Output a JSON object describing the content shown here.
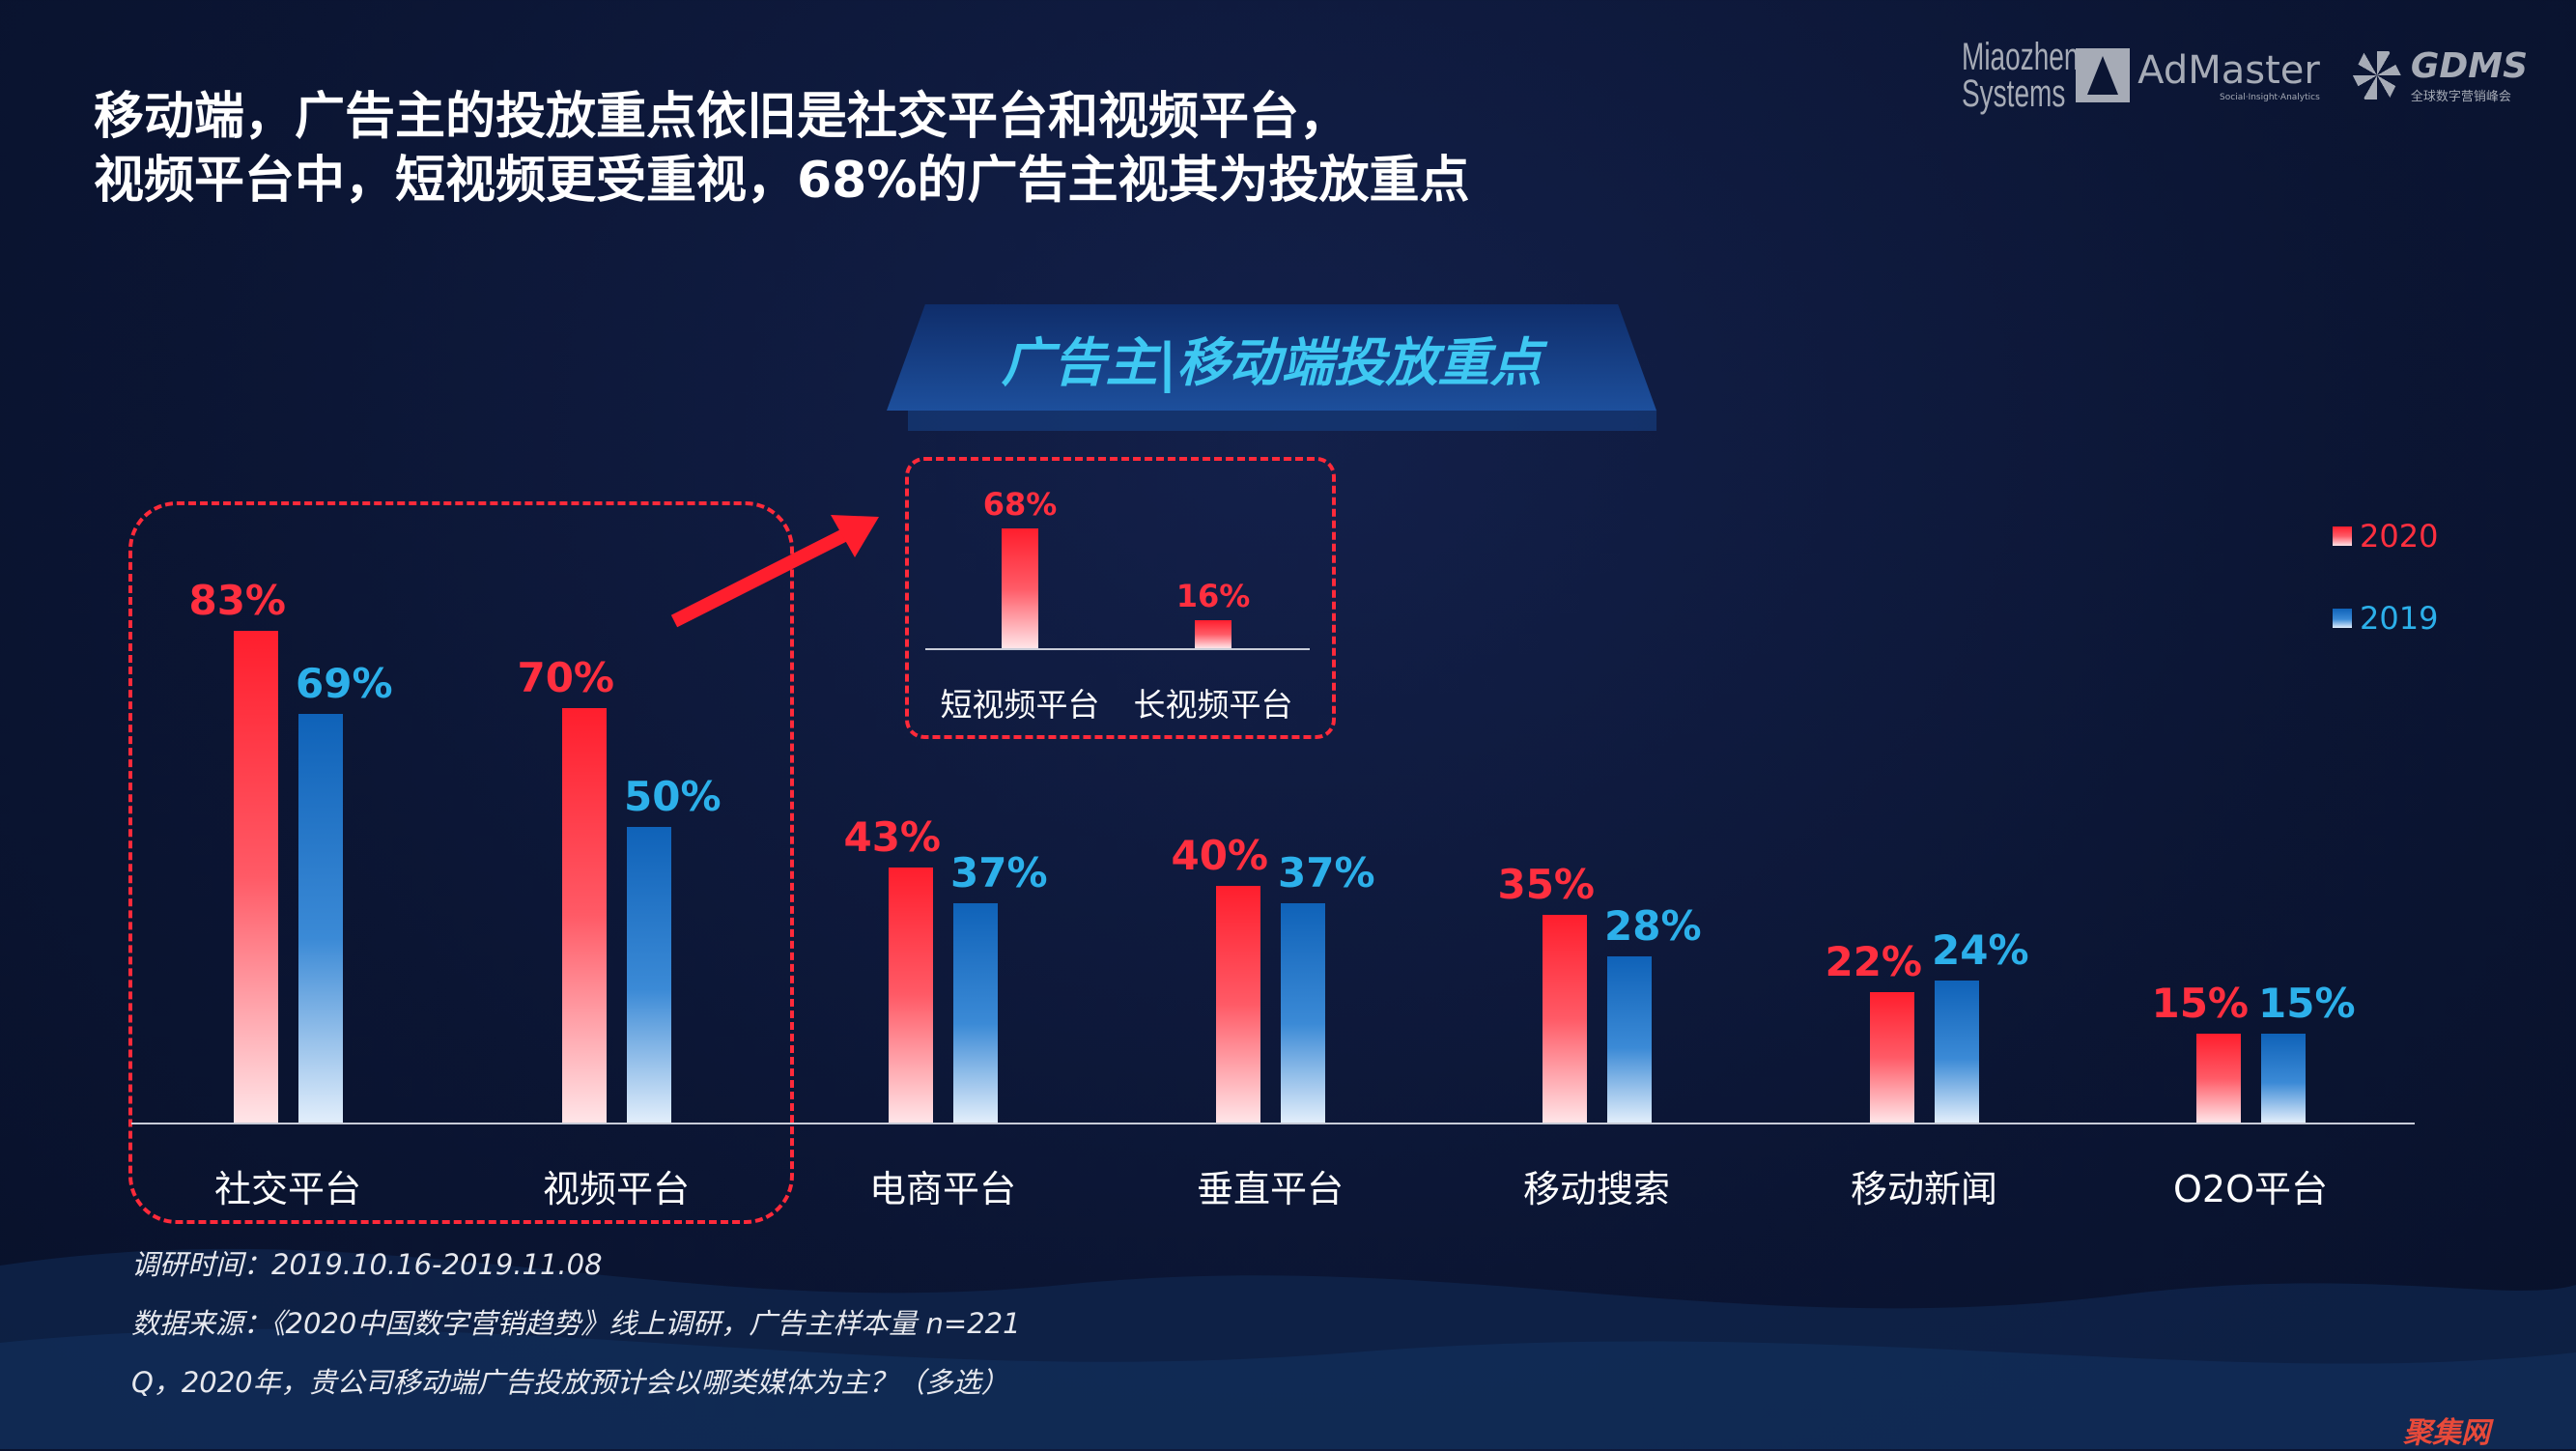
{
  "title": {
    "line1": "移动端，广告主的投放重点依旧是社交平台和视频平台，",
    "line2": "视频平台中，短视频更受重视，68%的广告主视其为投放重点"
  },
  "logos": {
    "miaozhen": "Miaozhen Systems",
    "admaster": "AdMaster",
    "admaster_sub": "Social·Insight·Analytics",
    "gdms": "GDMS",
    "gdms_sub": "全球数字营销峰会"
  },
  "banner": "广告主|移动端投放重点",
  "colors": {
    "2020": "#ff1e2d",
    "2019": "#0f62b8",
    "background": "#0b1533"
  },
  "chart_data": [
    {
      "type": "bar",
      "categories": [
        "社交平台",
        "视频平台",
        "电商平台",
        "垂直平台",
        "移动搜索",
        "移动新闻",
        "O2O平台"
      ],
      "series": [
        {
          "name": "2020",
          "values": [
            83,
            70,
            43,
            40,
            35,
            22,
            15
          ],
          "labels": [
            "83%",
            "70%",
            "43%",
            "40%",
            "35%",
            "22%",
            "15%"
          ]
        },
        {
          "name": "2019",
          "values": [
            69,
            50,
            37,
            37,
            28,
            24,
            15
          ],
          "labels": [
            "69%",
            "50%",
            "37%",
            "37%",
            "28%",
            "24%",
            "15%"
          ]
        }
      ],
      "legend": "right",
      "unit": "%",
      "ylim": [
        0,
        100
      ]
    },
    {
      "type": "bar",
      "categories": [
        "短视频平台",
        "长视频平台"
      ],
      "values": [
        68,
        16
      ],
      "labels": [
        "68%",
        "16%"
      ],
      "ylim": [
        0,
        100
      ]
    }
  ],
  "footer": {
    "time": "调研时间：2019.10.16-2019.11.08",
    "source": "数据来源：《2020中国数字营销趋势》线上调研，广告主样本量 n=221",
    "question": "Q，2020年，贵公司移动端广告投放预计会以哪类媒体为主？（多选）"
  },
  "watermark": "聚集网"
}
